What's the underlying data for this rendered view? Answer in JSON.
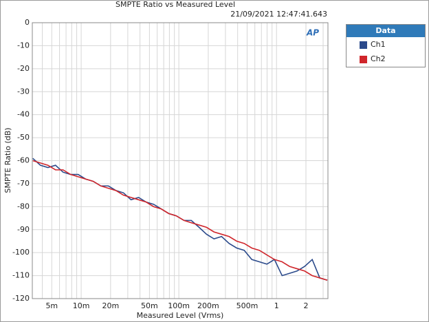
{
  "chart_data": {
    "type": "line",
    "title": "SMPTE Ratio vs Measured Level",
    "subtitle": "21/09/2021 12:47:41.643",
    "logo": "AP",
    "xlabel": "Measured Level (Vrms)",
    "ylabel": "SMPTE Ratio (dB)",
    "xlog": true,
    "grid": true,
    "legend_title": "Data",
    "legend": "outside-right",
    "xlim": [
      0.00316,
      3.36
    ],
    "ylim": [
      -120,
      0
    ],
    "xticks": [
      {
        "value": 0.005,
        "label": "5m"
      },
      {
        "value": 0.01,
        "label": "10m"
      },
      {
        "value": 0.02,
        "label": "20m"
      },
      {
        "value": 0.05,
        "label": "50m"
      },
      {
        "value": 0.1,
        "label": "100m"
      },
      {
        "value": 0.2,
        "label": "200m"
      },
      {
        "value": 0.5,
        "label": "500m"
      },
      1,
      2
    ],
    "x_minor_ticks": [
      0.004,
      0.006,
      0.007,
      0.008,
      0.009,
      0.03,
      0.04,
      0.06,
      0.07,
      0.08,
      0.09,
      0.3,
      0.4,
      0.6,
      0.7,
      0.8,
      0.9,
      3
    ],
    "yticks": [
      0,
      -10,
      -20,
      -30,
      -40,
      -50,
      -60,
      -70,
      -80,
      -90,
      -100,
      -110,
      -120
    ],
    "x": [
      0.0032,
      0.00382,
      0.00457,
      0.00546,
      0.00652,
      0.00779,
      0.00931,
      0.0111,
      0.0133,
      0.0159,
      0.019,
      0.0227,
      0.0271,
      0.0324,
      0.0387,
      0.0462,
      0.0552,
      0.066,
      0.0788,
      0.0942,
      0.113,
      0.134,
      0.161,
      0.192,
      0.229,
      0.274,
      0.327,
      0.391,
      0.467,
      0.558,
      0.667,
      0.797,
      0.952,
      1.14,
      1.36,
      1.62,
      1.94,
      2.32,
      2.77,
      3.31
    ],
    "series": [
      {
        "name": "Ch1",
        "color": "#2b4a8b",
        "values": [
          -59,
          -62,
          -63,
          -62,
          -65,
          -66,
          -66,
          -68,
          -69,
          -71,
          -71,
          -73,
          -74,
          -77,
          -76,
          -78,
          -79,
          -81,
          -83,
          -84,
          -86,
          -86,
          -89,
          -92,
          -94,
          -93,
          -96,
          -98,
          -99,
          -103,
          -104,
          -105,
          -103,
          -110,
          -109,
          -108,
          -106,
          -103,
          -111,
          -112
        ]
      },
      {
        "name": "Ch2",
        "color": "#d0262b",
        "values": [
          -60,
          -61,
          -62,
          -64,
          -64,
          -66,
          -67,
          -68,
          -69,
          -71,
          -72,
          -73,
          -75,
          -76,
          -77,
          -78,
          -80,
          -81,
          -83,
          -84,
          -86,
          -87,
          -88,
          -89,
          -91,
          -92,
          -93,
          -95,
          -96,
          -98,
          -99,
          -101,
          -103,
          -104,
          -106,
          -107,
          -108,
          -110,
          -111,
          -112
        ]
      }
    ]
  }
}
